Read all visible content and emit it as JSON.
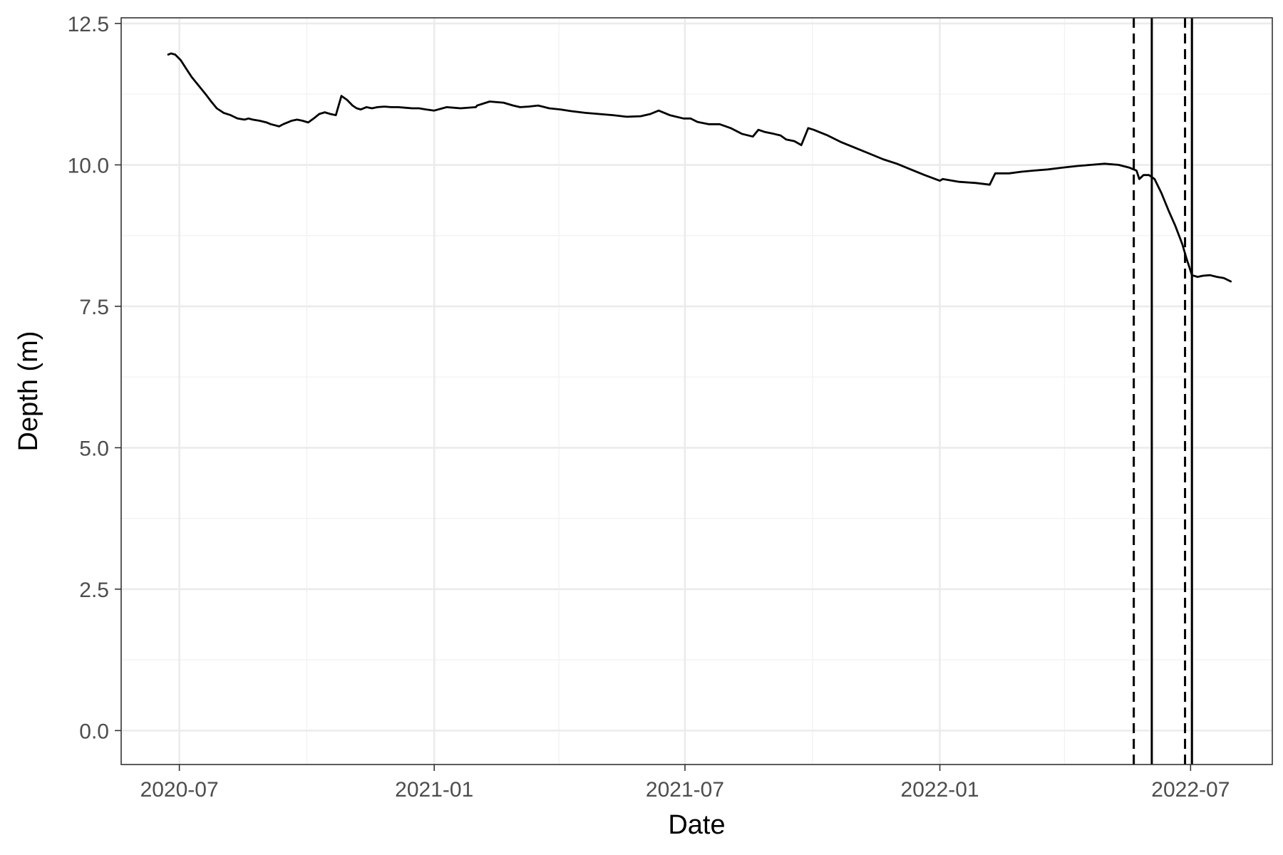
{
  "chart_data": {
    "type": "line",
    "title": "",
    "xlabel": "Date",
    "ylabel": "Depth (m)",
    "xlim": [
      "2020-05-20",
      "2022-08-29"
    ],
    "ylim": [
      -0.6,
      12.6
    ],
    "x_ticks": [
      "2020-07-01",
      "2021-01-01",
      "2021-07-01",
      "2022-01-01",
      "2022-07-01"
    ],
    "x_tick_labels": [
      "2020-07",
      "2021-01",
      "2021-07",
      "2022-01",
      "2022-07"
    ],
    "x_minor_ticks": [
      "2020-10-01",
      "2021-04-01",
      "2021-10-01",
      "2022-04-01"
    ],
    "y_ticks": [
      0,
      2.5,
      5,
      7.5,
      10,
      12.5
    ],
    "y_tick_labels": [
      "0.0",
      "2.5",
      "5.0",
      "7.5",
      "10.0",
      "12.5"
    ],
    "y_minor_ticks": [
      1.25,
      3.75,
      6.25,
      8.75,
      11.25
    ],
    "grid": true,
    "legend": "none",
    "colors": {
      "line": "#000000",
      "grid_major": "#ebebeb",
      "grid_minor": "#f2f2f2",
      "panel_border": "#333333"
    },
    "reference_lines": [
      {
        "x": "2022-05-21",
        "style": "dashed"
      },
      {
        "x": "2022-06-03",
        "style": "solid"
      },
      {
        "x": "2022-06-27",
        "style": "dashed"
      },
      {
        "x": "2022-07-02",
        "style": "solid"
      }
    ],
    "series": [
      {
        "x": [
          "2020-06-23",
          "2020-06-25",
          "2020-06-28",
          "2020-07-02",
          "2020-07-06",
          "2020-07-10",
          "2020-07-15",
          "2020-07-20",
          "2020-07-24",
          "2020-07-28",
          "2020-08-02",
          "2020-08-07",
          "2020-08-12",
          "2020-08-17",
          "2020-08-20",
          "2020-08-23",
          "2020-08-28",
          "2020-09-02",
          "2020-09-05",
          "2020-09-08",
          "2020-09-11",
          "2020-09-14",
          "2020-09-17",
          "2020-09-20",
          "2020-09-24",
          "2020-09-28",
          "2020-10-02",
          "2020-10-06",
          "2020-10-10",
          "2020-10-14",
          "2020-10-18",
          "2020-10-22",
          "2020-10-26",
          "2020-10-30",
          "2020-11-03",
          "2020-11-06",
          "2020-11-09",
          "2020-11-13",
          "2020-11-17",
          "2020-11-21",
          "2020-11-26",
          "2020-12-01",
          "2020-12-06",
          "2020-12-11",
          "2020-12-16",
          "2020-12-21",
          "2020-12-26",
          "2021-01-01",
          "2021-01-10",
          "2021-01-20",
          "2021-01-31",
          "2021-02-01",
          "2021-02-10",
          "2021-02-20",
          "2021-02-27",
          "2021-03-04",
          "2021-03-10",
          "2021-03-17",
          "2021-03-25",
          "2021-04-02",
          "2021-04-10",
          "2021-04-20",
          "2021-04-30",
          "2021-05-10",
          "2021-05-20",
          "2021-05-30",
          "2021-06-06",
          "2021-06-12",
          "2021-06-20",
          "2021-06-30",
          "2021-07-05",
          "2021-07-10",
          "2021-07-18",
          "2021-07-26",
          "2021-08-03",
          "2021-08-11",
          "2021-08-19",
          "2021-08-23",
          "2021-08-28",
          "2021-09-03",
          "2021-09-08",
          "2021-09-12",
          "2021-09-18",
          "2021-09-23",
          "2021-09-28",
          "2021-10-02",
          "2021-10-12",
          "2021-10-22",
          "2021-11-01",
          "2021-11-11",
          "2021-11-21",
          "2021-12-01",
          "2021-12-11",
          "2021-12-21",
          "2022-01-01",
          "2022-01-03",
          "2022-01-15",
          "2022-01-27",
          "2022-02-06",
          "2022-02-08",
          "2022-02-10",
          "2022-02-20",
          "2022-03-01",
          "2022-03-10",
          "2022-03-20",
          "2022-03-30",
          "2022-04-10",
          "2022-04-20",
          "2022-04-30",
          "2022-05-10",
          "2022-05-18",
          "2022-05-23",
          "2022-05-25",
          "2022-05-28",
          "2022-06-01",
          "2022-06-05",
          "2022-06-10",
          "2022-06-15",
          "2022-06-20",
          "2022-06-25",
          "2022-06-28",
          "2022-07-02",
          "2022-07-06",
          "2022-07-10",
          "2022-07-15",
          "2022-07-20",
          "2022-07-25",
          "2022-07-30"
        ],
        "y": [
          11.95,
          11.97,
          11.95,
          11.85,
          11.7,
          11.55,
          11.4,
          11.25,
          11.12,
          11.0,
          10.92,
          10.88,
          10.82,
          10.8,
          10.82,
          10.8,
          10.78,
          10.75,
          10.72,
          10.7,
          10.68,
          10.72,
          10.75,
          10.78,
          10.8,
          10.78,
          10.75,
          10.82,
          10.9,
          10.93,
          10.9,
          10.88,
          11.22,
          11.15,
          11.05,
          11.0,
          10.98,
          11.02,
          11.0,
          11.02,
          11.03,
          11.02,
          11.02,
          11.01,
          11.0,
          11.0,
          10.98,
          10.96,
          11.02,
          11.0,
          11.02,
          11.05,
          11.12,
          11.1,
          11.05,
          11.02,
          11.03,
          11.05,
          11.0,
          10.98,
          10.95,
          10.92,
          10.9,
          10.88,
          10.85,
          10.86,
          10.9,
          10.96,
          10.88,
          10.82,
          10.82,
          10.76,
          10.72,
          10.72,
          10.65,
          10.55,
          10.5,
          10.62,
          10.58,
          10.55,
          10.52,
          10.45,
          10.42,
          10.35,
          10.65,
          10.62,
          10.52,
          10.4,
          10.3,
          10.2,
          10.1,
          10.02,
          9.92,
          9.82,
          9.72,
          9.75,
          9.7,
          9.68,
          9.65,
          9.75,
          9.85,
          9.85,
          9.88,
          9.9,
          9.92,
          9.95,
          9.98,
          10.0,
          10.02,
          10.0,
          9.95,
          9.9,
          9.75,
          9.82,
          9.82,
          9.75,
          9.5,
          9.2,
          8.92,
          8.6,
          8.35,
          8.05,
          8.02,
          8.04,
          8.05,
          8.02,
          8.0,
          7.94
        ]
      }
    ]
  }
}
